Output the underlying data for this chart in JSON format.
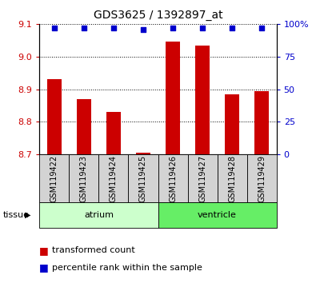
{
  "title": "GDS3625 / 1392897_at",
  "samples": [
    "GSM119422",
    "GSM119423",
    "GSM119424",
    "GSM119425",
    "GSM119426",
    "GSM119427",
    "GSM119428",
    "GSM119429"
  ],
  "transformed_counts": [
    8.93,
    8.87,
    8.83,
    8.705,
    9.045,
    9.035,
    8.885,
    8.895
  ],
  "percentile_ranks": [
    97,
    97,
    97,
    96,
    97,
    97,
    97,
    97
  ],
  "bar_bottom": 8.7,
  "bar_color": "#cc0000",
  "dot_color": "#0000cc",
  "ylim_left": [
    8.7,
    9.1
  ],
  "ylim_right": [
    0,
    100
  ],
  "yticks_left": [
    8.7,
    8.8,
    8.9,
    9.0,
    9.1
  ],
  "yticks_right": [
    0,
    25,
    50,
    75,
    100
  ],
  "ytick_labels_right": [
    "0",
    "25",
    "50",
    "75",
    "100%"
  ],
  "groups": [
    {
      "label": "atrium",
      "start": 0,
      "end": 4,
      "color": "#ccffcc"
    },
    {
      "label": "ventricle",
      "start": 4,
      "end": 8,
      "color": "#66ee66"
    }
  ],
  "tissue_label": "tissue",
  "legend_items": [
    {
      "color": "#cc0000",
      "label": "transformed count"
    },
    {
      "color": "#0000cc",
      "label": "percentile rank within the sample"
    }
  ],
  "bar_width": 0.5,
  "dot_size": 22,
  "dot_marker": "s",
  "xticklabel_fontsize": 7,
  "yticklabel_left_fontsize": 8,
  "yticklabel_right_fontsize": 8,
  "title_fontsize": 10,
  "sample_box_color": "#d3d3d3",
  "sample_box_edge": "#000000",
  "group_edge_color": "#000000",
  "legend_fontsize": 8,
  "legend_square_fontsize": 9
}
